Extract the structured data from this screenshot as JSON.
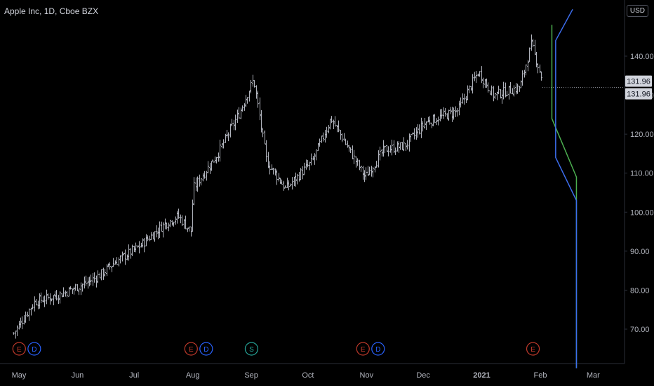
{
  "header": {
    "title": "Apple Inc, 1D, Cboe BZX",
    "currency": "USD"
  },
  "colors": {
    "background": "#000000",
    "candle": "#b0b3bc",
    "axis_text": "#b2b5be",
    "axis_line": "#2a2e39",
    "pitchfork_green": "#4caf50",
    "pitchfork_blue": "#3d6eef",
    "earnings": "#c0392b",
    "dividend": "#2962ff",
    "split": "#26a69a",
    "price_label_bg": "#d1d4dc",
    "price_label_text": "#131722"
  },
  "chart_data": {
    "type": "ohlc",
    "symbol": "Apple Inc",
    "interval": "1D",
    "exchange": "Cboe BZX",
    "y_axis": {
      "range": [
        60,
        148
      ],
      "ticks": [
        "70.00",
        "80.00",
        "90.00",
        "100.00",
        "110.00",
        "120.00",
        "130.00",
        "140.00"
      ]
    },
    "x_axis": {
      "ticks": [
        "May",
        "Jun",
        "Jul",
        "Aug",
        "Sep",
        "Oct",
        "Nov",
        "Dec",
        "2021",
        "Feb",
        "Mar"
      ]
    },
    "current_price_labels": [
      "131.96",
      "131.96"
    ],
    "current_price": 131.96,
    "close_path": [
      {
        "date": "2020-04-27",
        "price": 69
      },
      {
        "date": "2020-05-08",
        "price": 77
      },
      {
        "date": "2020-05-22",
        "price": 79
      },
      {
        "date": "2020-06-05",
        "price": 82
      },
      {
        "date": "2020-06-12",
        "price": 84
      },
      {
        "date": "2020-06-19",
        "price": 87
      },
      {
        "date": "2020-07-02",
        "price": 91
      },
      {
        "date": "2020-07-16",
        "price": 97
      },
      {
        "date": "2020-07-23",
        "price": 99
      },
      {
        "date": "2020-07-30",
        "price": 95
      },
      {
        "date": "2020-07-31",
        "price": 106
      },
      {
        "date": "2020-08-13",
        "price": 115
      },
      {
        "date": "2020-08-24",
        "price": 125
      },
      {
        "date": "2020-09-01",
        "price": 134
      },
      {
        "date": "2020-09-08",
        "price": 113
      },
      {
        "date": "2020-09-18",
        "price": 106
      },
      {
        "date": "2020-10-02",
        "price": 113
      },
      {
        "date": "2020-10-12",
        "price": 124
      },
      {
        "date": "2020-10-30",
        "price": 109
      },
      {
        "date": "2020-11-09",
        "price": 116
      },
      {
        "date": "2020-11-20",
        "price": 117
      },
      {
        "date": "2020-12-01",
        "price": 123
      },
      {
        "date": "2020-12-18",
        "price": 126
      },
      {
        "date": "2020-12-29",
        "price": 136
      },
      {
        "date": "2021-01-06",
        "price": 130
      },
      {
        "date": "2021-01-20",
        "price": 132
      },
      {
        "date": "2021-01-26",
        "price": 143
      },
      {
        "date": "2021-02-01",
        "price": 134
      }
    ],
    "events": [
      {
        "label": "E",
        "type": "earnings",
        "date": "2020-04-30"
      },
      {
        "label": "D",
        "type": "dividend",
        "date": "2020-05-08"
      },
      {
        "label": "E",
        "type": "earnings",
        "date": "2020-07-30"
      },
      {
        "label": "D",
        "type": "dividend",
        "date": "2020-08-07"
      },
      {
        "label": "S",
        "type": "split",
        "date": "2020-08-31"
      },
      {
        "label": "E",
        "type": "earnings",
        "date": "2020-10-29"
      },
      {
        "label": "D",
        "type": "dividend",
        "date": "2020-11-06"
      },
      {
        "label": "E",
        "type": "earnings",
        "date": "2021-01-27"
      }
    ],
    "drawings": [
      {
        "name": "green-line",
        "color": "green",
        "points": [
          {
            "date": "2021-02-06",
            "price": 148
          },
          {
            "date": "2021-02-06",
            "price": 124
          },
          {
            "date": "2021-02-19",
            "price": 109
          },
          {
            "date": "2021-02-19",
            "price": 60
          }
        ]
      },
      {
        "name": "blue-line",
        "color": "blue",
        "points": [
          {
            "date": "2021-02-17",
            "price": 152
          },
          {
            "date": "2021-02-08",
            "price": 144
          },
          {
            "date": "2021-02-08",
            "price": 114
          },
          {
            "date": "2021-02-19",
            "price": 103
          },
          {
            "date": "2021-02-19",
            "price": 60
          }
        ]
      }
    ]
  }
}
